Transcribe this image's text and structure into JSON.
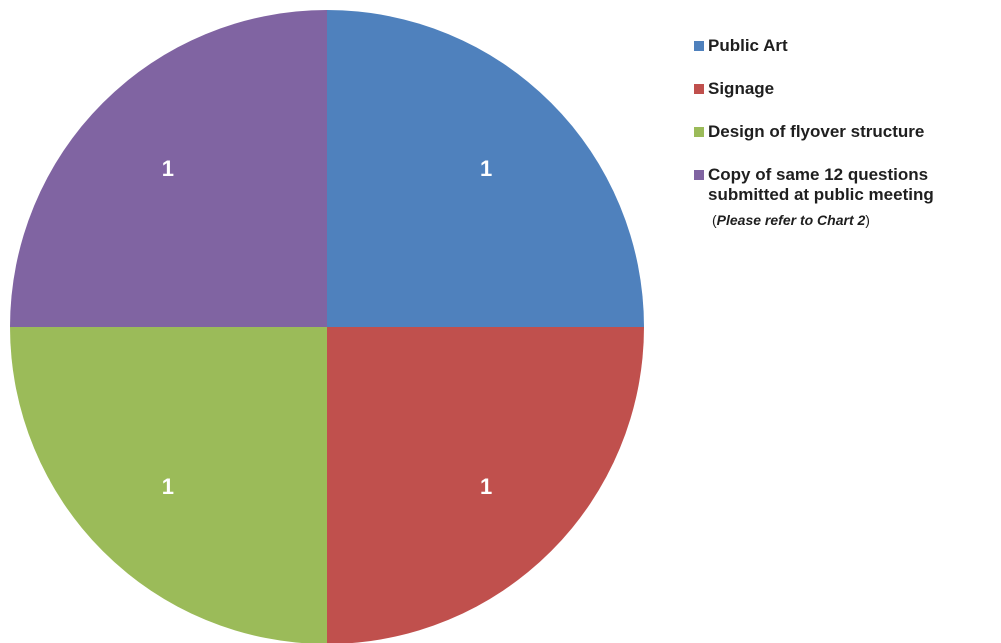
{
  "chart_data": {
    "type": "pie",
    "slices": [
      {
        "label": "Public Art",
        "value": 1,
        "data_label": "1",
        "color": "#4f81bd"
      },
      {
        "label": "Signage",
        "value": 1,
        "data_label": "1",
        "color": "#c0504d"
      },
      {
        "label": "Design of flyover structure",
        "value": 1,
        "data_label": "1",
        "color": "#9bbb59"
      },
      {
        "label": "Copy of same 12 questions submitted at public meeting",
        "value": 1,
        "data_label": "1",
        "color": "#8064a2"
      }
    ],
    "legend_position": "right",
    "start_angle": "12 o'clock",
    "direction": "clockwise"
  },
  "legend": {
    "items": [
      {
        "line1": "Public Art",
        "line2": ""
      },
      {
        "line1": "Signage",
        "line2": ""
      },
      {
        "line1": "Design of flyover structure",
        "line2": ""
      },
      {
        "line1": "Copy of same 12 questions",
        "line2": "submitted at public meeting"
      }
    ],
    "note_open": "(",
    "note_italic": "Please refer to Chart 2",
    "note_close": ")"
  }
}
